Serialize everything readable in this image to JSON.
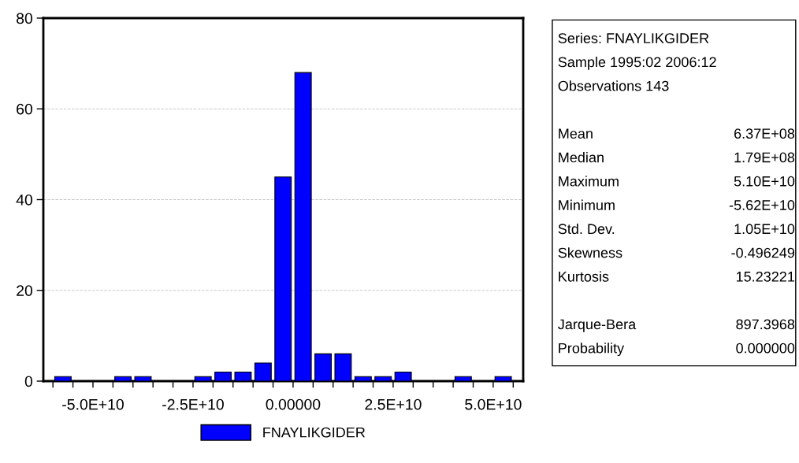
{
  "chart_data": [
    {
      "type": "histogram",
      "bins": [
        -60000000000,
        -55000000000,
        -50000000000,
        -45000000000,
        -40000000000,
        -35000000000,
        -30000000000,
        -25000000000,
        -20000000000,
        -15000000000,
        -10000000000,
        -5000000000,
        0,
        5000000000,
        10000000000,
        15000000000,
        20000000000,
        25000000000,
        30000000000,
        35000000000,
        40000000000,
        45000000000,
        50000000000,
        55000000000
      ],
      "series": [
        {
          "name": "FNAYLIKGIDER",
          "color": "#0000ff",
          "values": [
            1,
            0,
            0,
            1,
            1,
            0,
            0,
            1,
            2,
            2,
            4,
            45,
            68,
            6,
            6,
            1,
            1,
            2,
            0,
            0,
            1,
            0,
            1
          ]
        }
      ],
      "xlim": [
        -62400000000,
        57500000000
      ],
      "xticks": [
        {
          "value": -60000000000,
          "label": null
        },
        {
          "value": -55000000000,
          "label": null
        },
        {
          "value": -50000000000,
          "label": "-5.0E+10"
        },
        {
          "value": -45000000000,
          "label": null
        },
        {
          "value": -40000000000,
          "label": null
        },
        {
          "value": -35000000000,
          "label": null
        },
        {
          "value": -30000000000,
          "label": null
        },
        {
          "value": -25000000000,
          "label": "-2.5E+10"
        },
        {
          "value": -20000000000,
          "label": null
        },
        {
          "value": -15000000000,
          "label": null
        },
        {
          "value": -10000000000,
          "label": null
        },
        {
          "value": -5000000000,
          "label": null
        },
        {
          "value": 0,
          "label": "0.00000"
        },
        {
          "value": 5000000000,
          "label": null
        },
        {
          "value": 10000000000,
          "label": null
        },
        {
          "value": 15000000000,
          "label": null
        },
        {
          "value": 20000000000,
          "label": null
        },
        {
          "value": 25000000000,
          "label": "2.5E+10"
        },
        {
          "value": 30000000000,
          "label": null
        },
        {
          "value": 35000000000,
          "label": null
        },
        {
          "value": 40000000000,
          "label": null
        },
        {
          "value": 45000000000,
          "label": null
        },
        {
          "value": 50000000000,
          "label": "5.0E+10"
        },
        {
          "value": 55000000000,
          "label": null
        }
      ],
      "ylim": [
        0,
        80
      ],
      "yticks": [
        0,
        20,
        40,
        60,
        80
      ],
      "grid": "y",
      "legend": "bottom"
    },
    {
      "type": "other",
      "annotations": [
        "Series: FNAYLIKGIDER",
        "Sample 1995:02 2006:12",
        "Observations 143",
        "Mean\t6.37E+08",
        "Median\t1.79E+08",
        "Maximum\t5.10E+10",
        "Minimum\t-5.62E+10",
        "Std. Dev.\t1.05E+10",
        "Skewness\t-0.496249",
        "Kurtosis\t15.23221",
        "Jarque-Bera\t897.3968",
        "Probability\t0.000000"
      ]
    }
  ]
}
